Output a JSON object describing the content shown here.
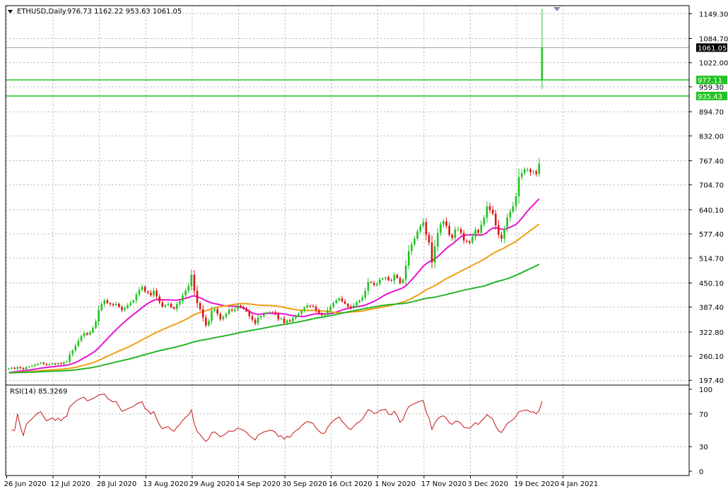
{
  "header": {
    "symbol_label": "ETHUSD,Daily",
    "ohlc": "976.73 1162.22 953.63 1061.05"
  },
  "colors": {
    "background": "#ffffff",
    "grid": "#b4b4b4",
    "axis_text": "#000000",
    "candle_up": "#22c322",
    "candle_down": "#e01414",
    "level_line": "#22c322",
    "ma_fast": "#e614d2",
    "ma_mid": "#f0a014",
    "ma_slow": "#28b428",
    "rsi": "#c81414",
    "price_tag_bg": "#000000"
  },
  "chart_data": [
    {
      "type": "candlestick",
      "symbol": "ETHUSD",
      "timeframe": "Daily",
      "y_ticks": [
        197.4,
        260.1,
        322.8,
        387.4,
        450.1,
        514.7,
        577.4,
        640.1,
        704.7,
        767.4,
        832.0,
        894.7,
        959.3,
        1022.0,
        1084.7,
        1149.3
      ],
      "ylim": [
        185,
        1170
      ],
      "x_tick_labels": [
        "26 Jun 2020",
        "12 Jul 2020",
        "28 Jul 2020",
        "13 Aug 2020",
        "29 Aug 2020",
        "14 Sep 2020",
        "30 Sep 2020",
        "16 Oct 2020",
        "1 Nov 2020",
        "17 Nov 2020",
        "3 Dec 2020",
        "19 Dec 2020",
        "4 Jan 2021"
      ],
      "x_tick_day_index": [
        0,
        16,
        32,
        48,
        64,
        80,
        96,
        112,
        128,
        144,
        160,
        176,
        192
      ],
      "price_tags": [
        {
          "value": 1061.05,
          "label": "1061.05",
          "style": "current"
        },
        {
          "value": 977.11,
          "label": "977.11",
          "style": "level"
        },
        {
          "value": 935.43,
          "label": "935.43",
          "style": "level"
        }
      ],
      "horizontal_levels": [
        1061.05,
        977.11,
        935.43
      ],
      "closes": [
        228,
        230,
        227,
        232,
        229,
        226,
        231,
        233,
        235,
        238,
        241,
        243,
        240,
        237,
        239,
        241,
        239,
        242,
        240,
        244,
        246,
        265,
        275,
        287,
        300,
        312,
        320,
        316,
        322,
        334,
        350,
        380,
        395,
        405,
        398,
        395,
        392,
        396,
        388,
        380,
        385,
        392,
        399,
        405,
        420,
        432,
        440,
        428,
        425,
        418,
        430,
        415,
        400,
        389,
        393,
        396,
        387,
        383,
        395,
        403,
        418,
        430,
        442,
        471,
        430,
        398,
        382,
        360,
        340,
        352,
        378,
        382,
        370,
        356,
        362,
        370,
        381,
        378,
        382,
        392,
        388,
        384,
        376,
        364,
        355,
        345,
        360,
        364,
        370,
        372,
        375,
        374,
        369,
        356,
        358,
        346,
        353,
        350,
        359,
        366,
        370,
        379,
        386,
        392,
        390,
        388,
        379,
        372,
        366,
        367,
        379,
        389,
        398,
        405,
        410,
        402,
        396,
        389,
        385,
        392,
        400,
        405,
        412,
        430,
        452,
        450,
        445,
        448,
        459,
        462,
        465,
        457,
        456,
        471,
        463,
        450,
        459,
        495,
        533,
        550,
        565,
        584,
        598,
        608,
        575,
        555,
        503,
        545,
        580,
        602,
        610,
        598,
        575,
        567,
        589,
        590,
        580,
        560,
        559,
        555,
        570,
        588,
        580,
        601,
        620,
        649,
        640,
        630,
        600,
        575,
        565,
        590,
        620,
        635,
        650,
        675,
        725,
        735,
        745,
        745,
        738,
        740,
        733,
        760,
        1061.05
      ],
      "ma_fast_period_note": "",
      "indicator": {
        "label": "RSI(14) 85.3269",
        "name": "RSI(14)",
        "value": 85.3269,
        "ylim": [
          0,
          100
        ],
        "y_ticks": [
          100,
          70,
          30,
          0
        ]
      }
    }
  ]
}
